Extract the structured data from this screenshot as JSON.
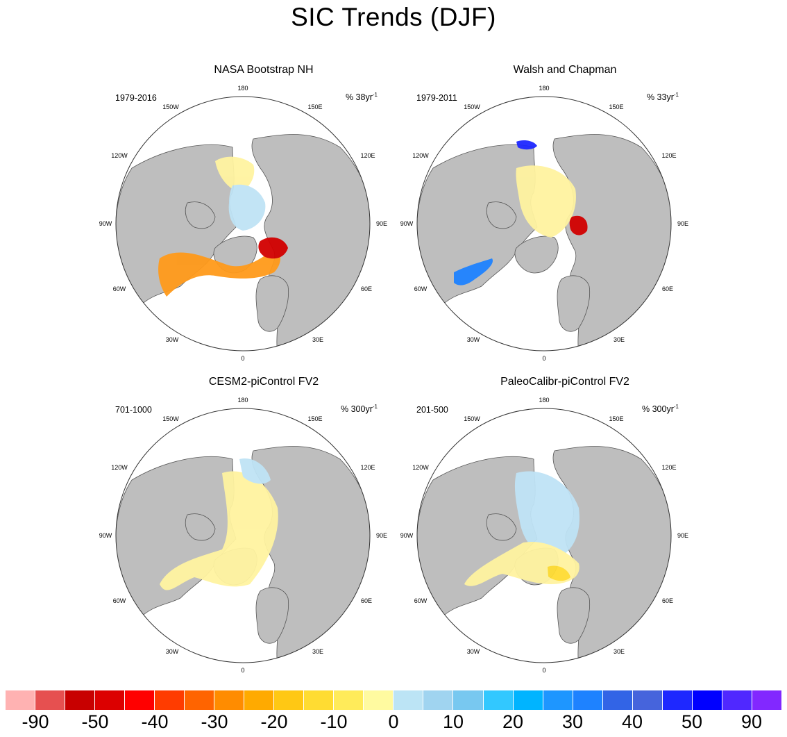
{
  "title": "SIC Trends (DJF)",
  "colors": {
    "land": "#bebebe",
    "coast": "#555555",
    "ocean": "#ffffff"
  },
  "longitude_labels": [
    "180",
    "150E",
    "120E",
    "90E",
    "60E",
    "30E",
    "0",
    "30W",
    "60W",
    "90W",
    "120W",
    "150W"
  ],
  "panels": [
    {
      "id": "nasa",
      "title": "NASA Bootstrap NH",
      "period": "1979-2016",
      "units_base": "% 38yr",
      "units_exp": "-1"
    },
    {
      "id": "walsh",
      "title": "Walsh and Chapman",
      "period": "1979-2011",
      "units_base": "% 33yr",
      "units_exp": "-1"
    },
    {
      "id": "cesm2",
      "title": "CESM2-piControl FV2",
      "period": "701-1000",
      "units_base": "% 300yr",
      "units_exp": "-1"
    },
    {
      "id": "paleo",
      "title": "PaleoCalibr-piControl FV2",
      "period": "201-500",
      "units_base": "% 300yr",
      "units_exp": "-1"
    }
  ],
  "colorbar": {
    "colors": [
      "#ffb2b2",
      "#e65050",
      "#c80000",
      "#dc0000",
      "#ff0000",
      "#ff3c00",
      "#ff6400",
      "#ff8c00",
      "#ffaa00",
      "#ffc814",
      "#ffdc32",
      "#ffeb5a",
      "#fffaa0",
      "#bce4f5",
      "#a0d4f0",
      "#78c8f0",
      "#32c8ff",
      "#00b4ff",
      "#1e96ff",
      "#1e82ff",
      "#3264e6",
      "#4664dc",
      "#1e28ff",
      "#0000ff",
      "#5028ff",
      "#8228ff"
    ],
    "labels": [
      "-90",
      "-50",
      "-40",
      "-30",
      "-20",
      "-10",
      "0",
      "10",
      "20",
      "30",
      "40",
      "50",
      "90"
    ]
  }
}
